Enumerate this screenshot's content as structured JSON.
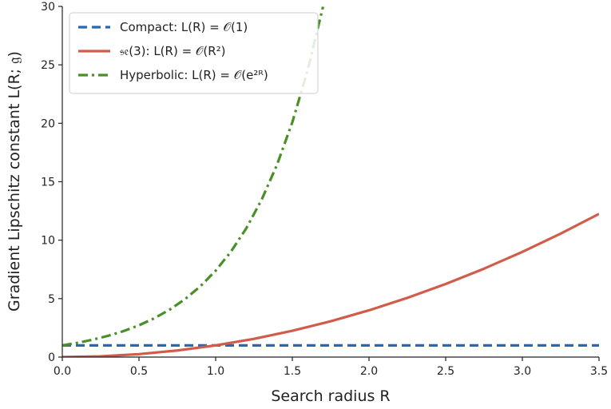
{
  "chart_data": {
    "type": "line",
    "xlabel": "Search radius R",
    "ylabel": "Gradient Lipschitz constant L(R; 𝔤)",
    "xlim": [
      0,
      3.5
    ],
    "ylim": [
      0,
      30
    ],
    "xticks": [
      "0.0",
      "0.5",
      "1.0",
      "1.5",
      "2.0",
      "2.5",
      "3.0",
      "3.5"
    ],
    "xtick_values": [
      0,
      0.5,
      1.0,
      1.5,
      2.0,
      2.5,
      3.0,
      3.5
    ],
    "yticks": [
      "0",
      "5",
      "10",
      "15",
      "20",
      "25",
      "30"
    ],
    "ytick_values": [
      0,
      5,
      10,
      15,
      20,
      25,
      30
    ],
    "grid": false,
    "legend_position": "top-left",
    "series": [
      {
        "name": "Compact: L(R) = 𝒪(1)",
        "style": "dashed",
        "color": "#2b66b0",
        "x": [
          0,
          0.5,
          1.0,
          1.5,
          2.0,
          2.5,
          3.0,
          3.5
        ],
        "y": [
          1,
          1,
          1,
          1,
          1,
          1,
          1,
          1
        ]
      },
      {
        "name": "𝔰𝔢(3): L(R) = 𝒪(R²)",
        "style": "solid",
        "color": "#d25c4a",
        "x": [
          0,
          0.25,
          0.5,
          0.75,
          1.0,
          1.25,
          1.5,
          1.75,
          2.0,
          2.25,
          2.5,
          2.75,
          3.0,
          3.25,
          3.5
        ],
        "y": [
          0,
          0.0625,
          0.25,
          0.5625,
          1.0,
          1.5625,
          2.25,
          3.0625,
          4.0,
          5.0625,
          6.25,
          7.5625,
          9.0,
          10.5625,
          12.25
        ]
      },
      {
        "name": "Hyperbolic: L(R) = 𝒪(e²ᴿ)",
        "style": "dashdot",
        "color": "#4a8f2a",
        "x": [
          0,
          0.1,
          0.2,
          0.3,
          0.4,
          0.5,
          0.6,
          0.7,
          0.8,
          0.9,
          1.0,
          1.1,
          1.2,
          1.3,
          1.4,
          1.5,
          1.6,
          1.7
        ],
        "y": [
          1.0,
          1.221,
          1.492,
          1.822,
          2.226,
          2.718,
          3.32,
          4.055,
          4.953,
          6.05,
          7.389,
          9.025,
          11.023,
          13.464,
          16.445,
          20.086,
          24.533,
          29.964
        ]
      }
    ]
  }
}
